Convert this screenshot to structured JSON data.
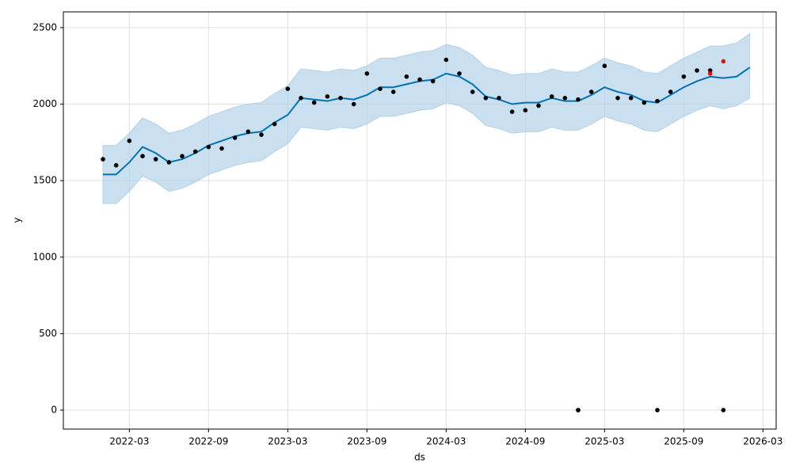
{
  "chart_data": {
    "type": "forecast",
    "xlabel": "ds",
    "ylabel": "y",
    "x": [
      "2022-01",
      "2022-02",
      "2022-03",
      "2022-04",
      "2022-05",
      "2022-06",
      "2022-07",
      "2022-08",
      "2022-09",
      "2022-10",
      "2022-11",
      "2022-12",
      "2023-01",
      "2023-02",
      "2023-03",
      "2023-04",
      "2023-05",
      "2023-06",
      "2023-07",
      "2023-08",
      "2023-09",
      "2023-10",
      "2023-11",
      "2023-12",
      "2024-01",
      "2024-02",
      "2024-03",
      "2024-04",
      "2024-05",
      "2024-06",
      "2024-07",
      "2024-08",
      "2024-09",
      "2024-10",
      "2024-11",
      "2024-12",
      "2025-01",
      "2025-02",
      "2025-03",
      "2025-04",
      "2025-05",
      "2025-06",
      "2025-07",
      "2025-08",
      "2025-09",
      "2025-10",
      "2025-11",
      "2025-12",
      "2026-01",
      "2026-02"
    ],
    "band": {
      "color": "#b3d1e8",
      "lower": [
        1350,
        1350,
        1430,
        1530,
        1490,
        1430,
        1450,
        1490,
        1540,
        1570,
        1600,
        1620,
        1630,
        1690,
        1740,
        1850,
        1840,
        1830,
        1850,
        1840,
        1870,
        1920,
        1920,
        1940,
        1960,
        1970,
        2010,
        1990,
        1940,
        1860,
        1840,
        1810,
        1820,
        1820,
        1850,
        1830,
        1830,
        1870,
        1920,
        1890,
        1870,
        1830,
        1820,
        1870,
        1920,
        1960,
        1990,
        1970,
        1990,
        2040
      ],
      "upper": [
        1730,
        1730,
        1810,
        1910,
        1870,
        1810,
        1830,
        1870,
        1920,
        1950,
        1980,
        2000,
        2010,
        2070,
        2120,
        2230,
        2220,
        2210,
        2230,
        2220,
        2250,
        2300,
        2300,
        2320,
        2340,
        2350,
        2390,
        2370,
        2320,
        2240,
        2220,
        2190,
        2200,
        2200,
        2230,
        2210,
        2210,
        2250,
        2300,
        2270,
        2250,
        2210,
        2200,
        2250,
        2300,
        2340,
        2380,
        2380,
        2400,
        2460
      ]
    },
    "series": [
      {
        "style": "line",
        "color": "#0072b2",
        "values": [
          1540,
          1540,
          1620,
          1720,
          1680,
          1620,
          1640,
          1680,
          1730,
          1760,
          1790,
          1810,
          1820,
          1880,
          1930,
          2040,
          2030,
          2020,
          2040,
          2030,
          2060,
          2110,
          2110,
          2130,
          2150,
          2160,
          2200,
          2180,
          2130,
          2050,
          2030,
          2000,
          2010,
          2010,
          2040,
          2020,
          2020,
          2060,
          2110,
          2080,
          2060,
          2020,
          2010,
          2060,
          2110,
          2150,
          2180,
          2170,
          2180,
          2240
        ]
      },
      {
        "style": "points",
        "color": "#000000",
        "values": [
          1640,
          1600,
          1760,
          1660,
          1640,
          1620,
          1660,
          1690,
          1720,
          1710,
          1780,
          1820,
          1800,
          1870,
          2100,
          2040,
          2010,
          2050,
          2040,
          2000,
          2200,
          2100,
          2080,
          2180,
          2160,
          2150,
          2290,
          2200,
          2080,
          2040,
          2040,
          1950,
          1960,
          1990,
          2050,
          2040,
          2030,
          2080,
          2250,
          2040,
          2040,
          2010,
          2020,
          2080,
          2180,
          2220,
          2220,
          null,
          null,
          null
        ]
      },
      {
        "style": "points",
        "color": "#ff0000",
        "values": [
          null,
          null,
          null,
          null,
          null,
          null,
          null,
          null,
          null,
          null,
          null,
          null,
          null,
          null,
          null,
          null,
          null,
          null,
          null,
          null,
          null,
          null,
          null,
          null,
          null,
          null,
          null,
          null,
          null,
          null,
          null,
          null,
          null,
          null,
          null,
          null,
          null,
          null,
          null,
          null,
          null,
          null,
          null,
          null,
          null,
          null,
          2200,
          2280,
          null,
          null
        ]
      }
    ],
    "outliers": {
      "color": "#000000",
      "x": [
        "2025-01",
        "2025-01",
        "2025-07",
        "2025-12"
      ],
      "values": [
        0,
        0,
        0,
        0
      ]
    },
    "xlim": [
      "2021-10",
      "2026-04"
    ],
    "xticks": [
      "2022-03",
      "2022-09",
      "2023-03",
      "2023-09",
      "2024-03",
      "2024-09",
      "2025-03",
      "2025-09",
      "2026-03"
    ],
    "ylim": [
      -124,
      2603
    ],
    "yticks": [
      0,
      500,
      1000,
      1500,
      2000,
      2500
    ],
    "grid": true
  }
}
